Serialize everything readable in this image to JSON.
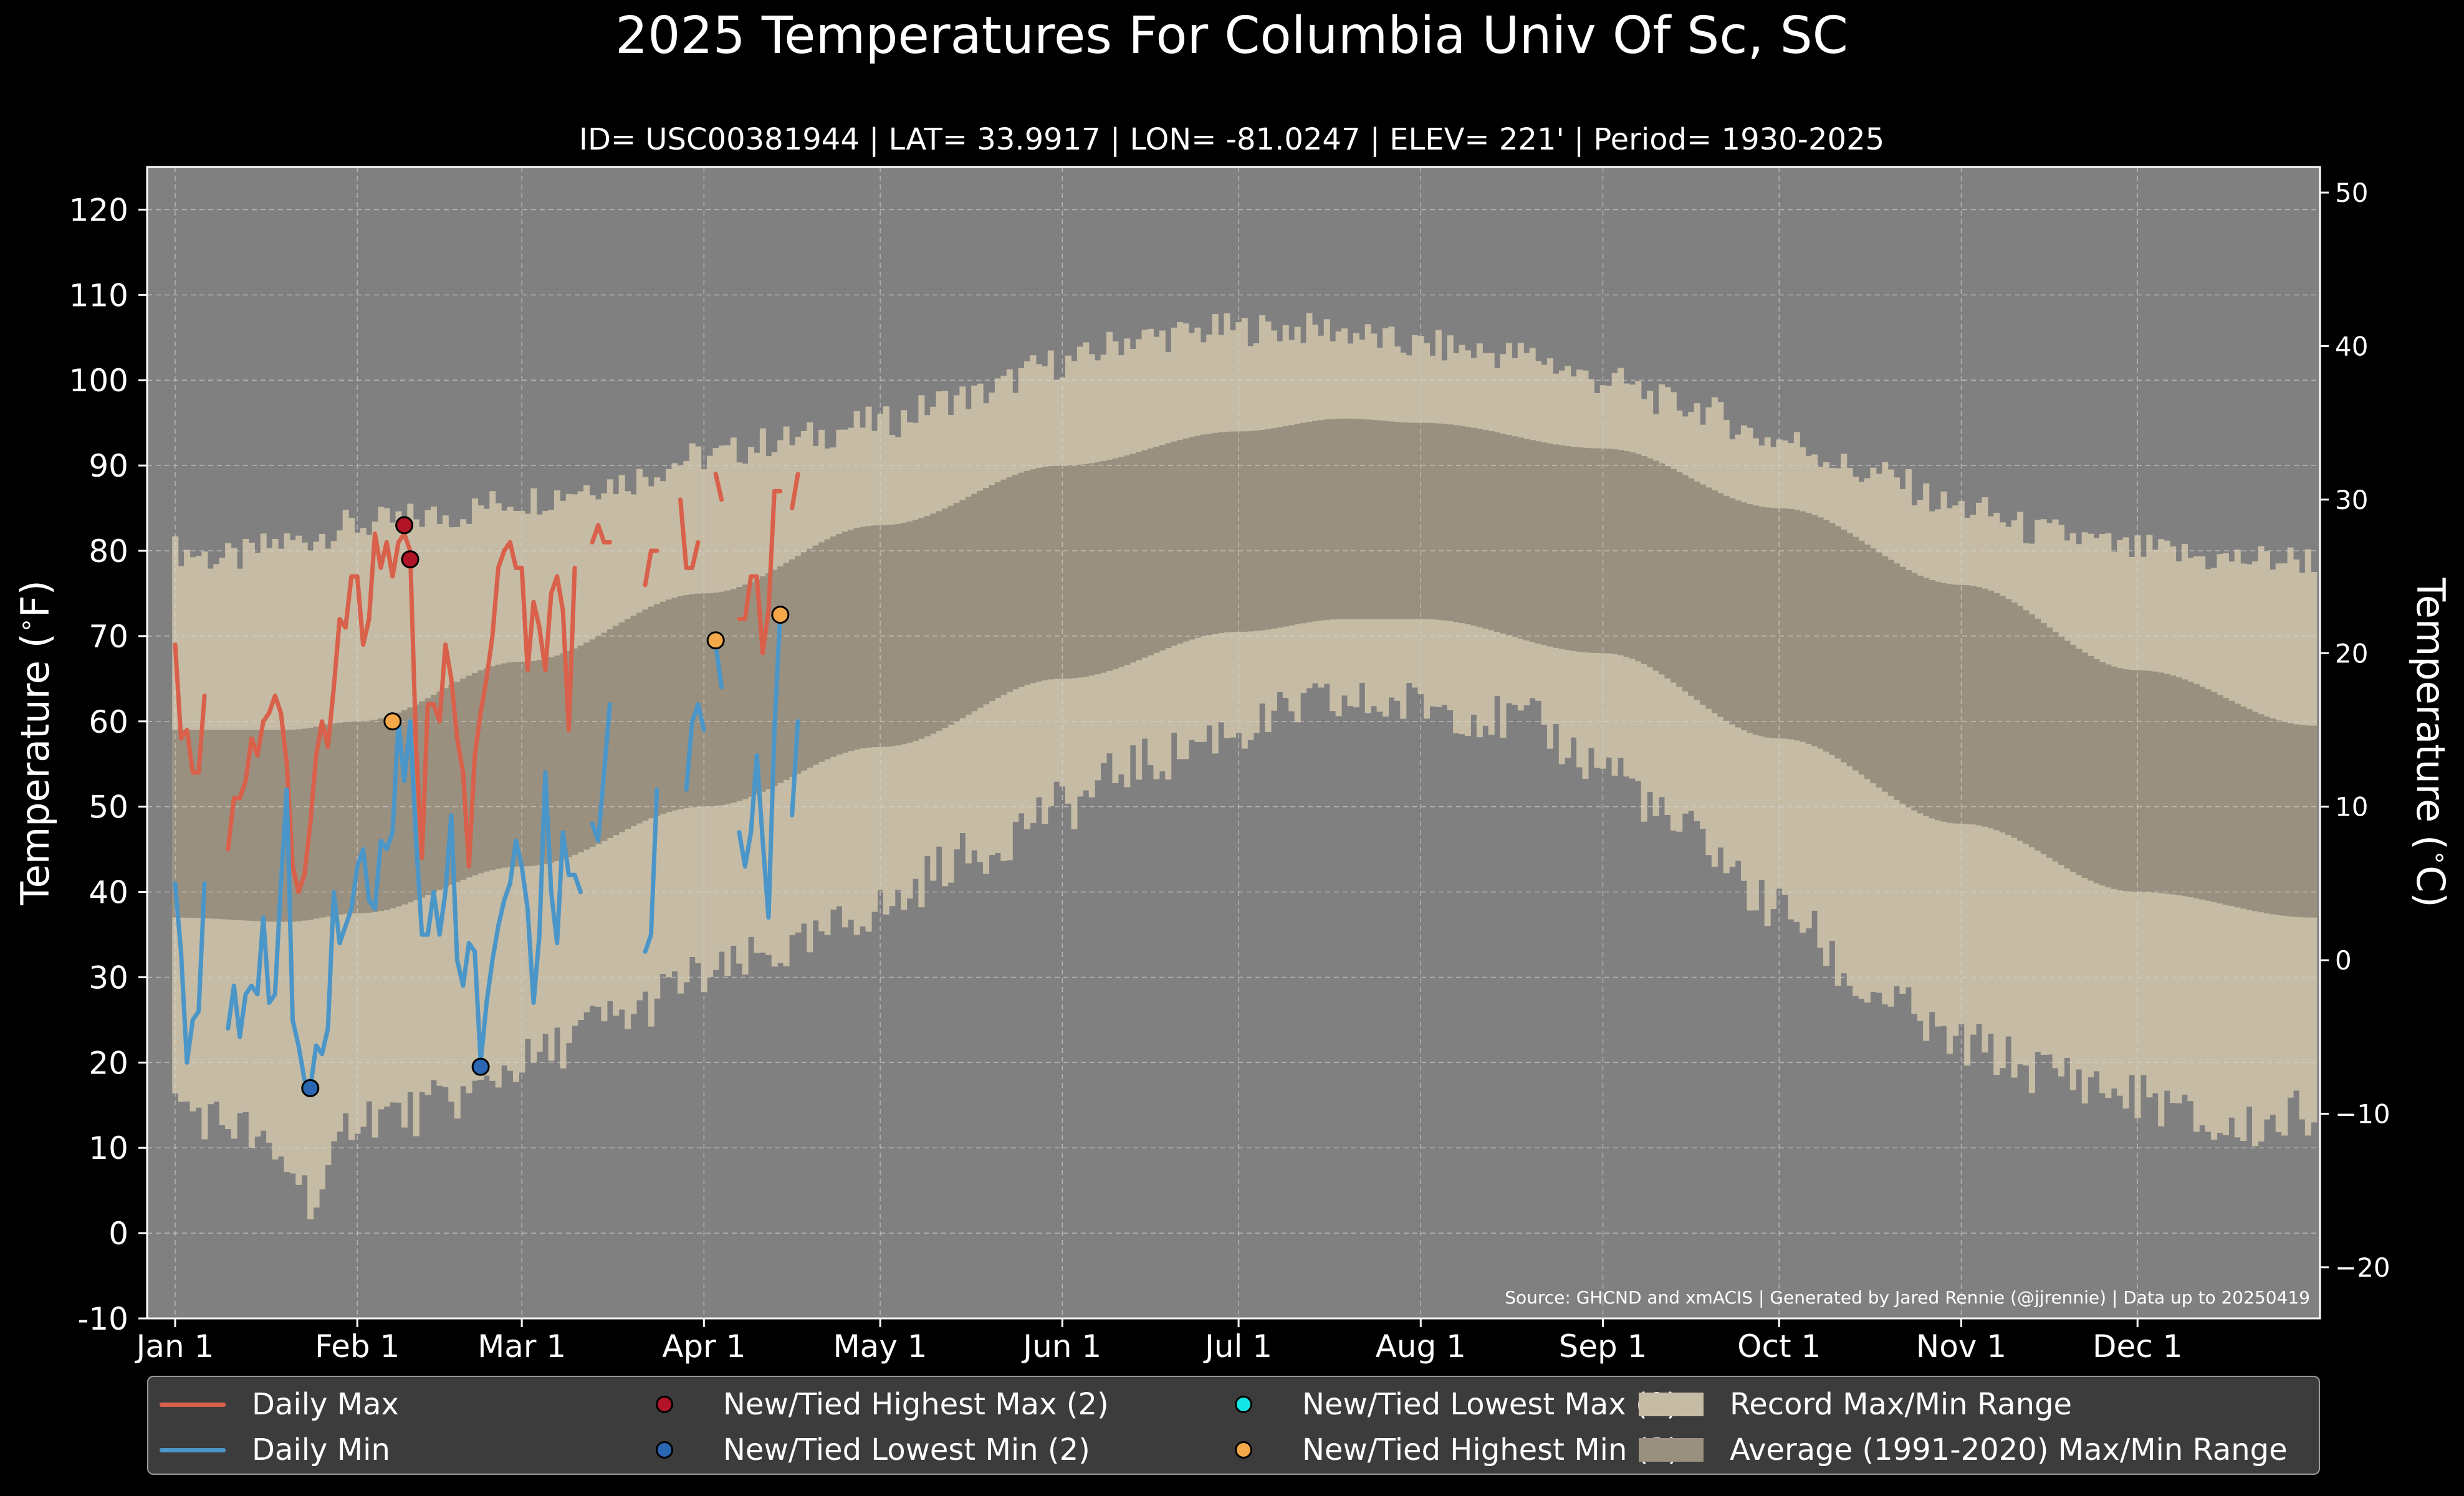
{
  "title": "2025 Temperatures For Columbia Univ Of Sc, SC",
  "subtitle": "ID= USC00381944 | LAT= 33.9917 | LON= -81.0247 | ELEV= 221' | Period= 1930-2025",
  "source_note": "Source: GHCND and xmACIS | Generated by Jared Rennie (@jjrennie) | Data up to 20250419",
  "colors": {
    "background": "#000000",
    "plot_bg": "#808080",
    "record_range": "#c6bba4",
    "average_range": "#9a9080",
    "daily_max": "#d9604a",
    "daily_min": "#4b96c8",
    "new_high_max": "#b01426",
    "new_low_min": "#2a66b2",
    "new_low_max": "#14e6e6",
    "new_high_min": "#f4a84a"
  },
  "legend": [
    {
      "label": "Daily Max",
      "kind": "line",
      "color": "#d9604a"
    },
    {
      "label": "New/Tied Highest Max (2)",
      "kind": "dot",
      "color": "#b01426"
    },
    {
      "label": "New/Tied Lowest Max (0)",
      "kind": "dot",
      "color": "#14e6e6"
    },
    {
      "label": "Record Max/Min Range",
      "kind": "patch",
      "color": "#c6bba4"
    },
    {
      "label": "Daily Min",
      "kind": "line",
      "color": "#4b96c8"
    },
    {
      "label": "New/Tied Lowest Min (2)",
      "kind": "dot",
      "color": "#2a66b2"
    },
    {
      "label": "New/Tied Highest Min (3)",
      "kind": "dot",
      "color": "#f4a84a"
    },
    {
      "label": "Average (1991-2020) Max/Min Range",
      "kind": "patch",
      "color": "#9a9080"
    }
  ],
  "chart_data": {
    "type": "line",
    "ylabel": "Temperature ($^\\circ$F)",
    "ylabel_right": "Temperature ($^\\circ$C)",
    "ylim": [
      -10,
      125
    ],
    "yticks": [
      "-10",
      "0",
      "10",
      "20",
      "30",
      "40",
      "50",
      "60",
      "70",
      "80",
      "90",
      "100",
      "110",
      "120"
    ],
    "ylim_right": [
      -23.33,
      51.67
    ],
    "yticks_right": [
      "−20",
      "−10",
      "0",
      "10",
      "20",
      "30",
      "40",
      "50"
    ],
    "xlim_day": [
      0,
      365
    ],
    "xticks": [
      {
        "label": "Jan 1",
        "day": 1
      },
      {
        "label": "Feb 1",
        "day": 32
      },
      {
        "label": "Mar 1",
        "day": 60
      },
      {
        "label": "Apr 1",
        "day": 91
      },
      {
        "label": "May 1",
        "day": 121
      },
      {
        "label": "Jun 1",
        "day": 152
      },
      {
        "label": "Jul 1",
        "day": 182
      },
      {
        "label": "Aug 1",
        "day": 213
      },
      {
        "label": "Sep 1",
        "day": 244
      },
      {
        "label": "Oct 1",
        "day": 274
      },
      {
        "label": "Nov 1",
        "day": 305
      },
      {
        "label": "Dec 1",
        "day": 335
      }
    ],
    "grid": true,
    "legend_position": "below",
    "record_max_anchors": [
      [
        1,
        80
      ],
      [
        10,
        79
      ],
      [
        20,
        81
      ],
      [
        32,
        83
      ],
      [
        45,
        84
      ],
      [
        60,
        86
      ],
      [
        75,
        88
      ],
      [
        91,
        91
      ],
      [
        105,
        93
      ],
      [
        121,
        95
      ],
      [
        135,
        98
      ],
      [
        152,
        102
      ],
      [
        165,
        105
      ],
      [
        182,
        106
      ],
      [
        196,
        106
      ],
      [
        213,
        104
      ],
      [
        230,
        103
      ],
      [
        244,
        100
      ],
      [
        258,
        97
      ],
      [
        274,
        93
      ],
      [
        290,
        89
      ],
      [
        305,
        85
      ],
      [
        320,
        82
      ],
      [
        335,
        80
      ],
      [
        350,
        79
      ],
      [
        365,
        79
      ]
    ],
    "record_min_anchors": [
      [
        1,
        15
      ],
      [
        10,
        13
      ],
      [
        20,
        8
      ],
      [
        25,
        4
      ],
      [
        32,
        14
      ],
      [
        40,
        14
      ],
      [
        50,
        16
      ],
      [
        60,
        20
      ],
      [
        75,
        25
      ],
      [
        91,
        30
      ],
      [
        105,
        33
      ],
      [
        121,
        38
      ],
      [
        135,
        44
      ],
      [
        152,
        50
      ],
      [
        165,
        55
      ],
      [
        182,
        59
      ],
      [
        196,
        62
      ],
      [
        213,
        62
      ],
      [
        230,
        60
      ],
      [
        244,
        55
      ],
      [
        258,
        47
      ],
      [
        274,
        38
      ],
      [
        290,
        28
      ],
      [
        305,
        22
      ],
      [
        320,
        19
      ],
      [
        335,
        16
      ],
      [
        350,
        12
      ],
      [
        365,
        14
      ]
    ],
    "average_max_anchors": [
      [
        1,
        59
      ],
      [
        20,
        59
      ],
      [
        32,
        60
      ],
      [
        60,
        67
      ],
      [
        91,
        75
      ],
      [
        121,
        83
      ],
      [
        152,
        90
      ],
      [
        182,
        94
      ],
      [
        200,
        95.5
      ],
      [
        213,
        95
      ],
      [
        244,
        92
      ],
      [
        274,
        85
      ],
      [
        305,
        76
      ],
      [
        335,
        66
      ],
      [
        365,
        59.5
      ]
    ],
    "average_min_anchors": [
      [
        1,
        37
      ],
      [
        20,
        36.5
      ],
      [
        32,
        37.5
      ],
      [
        60,
        43
      ],
      [
        91,
        50
      ],
      [
        121,
        57
      ],
      [
        152,
        65
      ],
      [
        182,
        70.5
      ],
      [
        200,
        72
      ],
      [
        213,
        72
      ],
      [
        244,
        68
      ],
      [
        274,
        58
      ],
      [
        305,
        48
      ],
      [
        335,
        40
      ],
      [
        365,
        37
      ]
    ],
    "series": [
      {
        "name": "Daily Max",
        "color": "#d9604a",
        "points": [
          [
            1,
            69
          ],
          [
            2,
            58
          ],
          [
            3,
            59
          ],
          [
            4,
            54
          ],
          [
            5,
            54
          ],
          [
            6,
            63
          ],
          [
            null,
            null
          ],
          [
            10,
            45
          ],
          [
            11,
            51
          ],
          [
            12,
            51
          ],
          [
            13,
            53
          ],
          [
            14,
            58
          ],
          [
            15,
            56
          ],
          [
            16,
            60
          ],
          [
            17,
            61
          ],
          [
            18,
            63
          ],
          [
            19,
            61
          ],
          [
            20,
            55
          ],
          [
            21,
            43
          ],
          [
            22,
            40
          ],
          [
            23,
            42
          ],
          [
            24,
            48
          ],
          [
            25,
            56
          ],
          [
            26,
            60
          ],
          [
            27,
            57
          ],
          [
            28,
            64
          ],
          [
            29,
            72
          ],
          [
            30,
            71
          ],
          [
            31,
            77
          ],
          [
            32,
            77
          ],
          [
            33,
            69
          ],
          [
            34,
            72
          ],
          [
            35,
            82
          ],
          [
            36,
            78
          ],
          [
            37,
            81
          ],
          [
            38,
            77
          ],
          [
            39,
            81
          ],
          [
            40,
            82
          ],
          [
            41,
            80
          ],
          [
            42,
            57
          ],
          [
            43,
            44
          ],
          [
            44,
            62
          ],
          [
            45,
            62
          ],
          [
            46,
            60
          ],
          [
            47,
            69
          ],
          [
            48,
            65
          ],
          [
            49,
            58
          ],
          [
            50,
            54
          ],
          [
            51,
            43
          ],
          [
            52,
            56
          ],
          [
            53,
            61
          ],
          [
            54,
            65
          ],
          [
            55,
            70
          ],
          [
            56,
            78
          ],
          [
            57,
            80
          ],
          [
            58,
            81
          ],
          [
            59,
            78
          ],
          [
            60,
            78
          ],
          [
            61,
            66
          ],
          [
            62,
            74
          ],
          [
            63,
            71
          ],
          [
            64,
            66
          ],
          [
            65,
            75
          ],
          [
            66,
            77
          ],
          [
            67,
            73
          ],
          [
            68,
            59
          ],
          [
            69,
            78
          ],
          [
            null,
            null
          ],
          [
            72,
            81
          ],
          [
            73,
            83
          ],
          [
            74,
            81
          ],
          [
            75,
            81
          ],
          [
            null,
            null
          ],
          [
            81,
            76
          ],
          [
            82,
            80
          ],
          [
            83,
            80
          ],
          [
            null,
            null
          ],
          [
            87,
            86
          ],
          [
            88,
            78
          ],
          [
            89,
            78
          ],
          [
            90,
            81
          ],
          [
            null,
            null
          ],
          [
            93,
            89
          ],
          [
            94,
            86
          ],
          [
            null,
            null
          ],
          [
            97,
            72
          ],
          [
            98,
            72
          ],
          [
            99,
            77
          ],
          [
            100,
            77
          ],
          [
            101,
            68
          ],
          [
            102,
            73
          ],
          [
            103,
            87
          ],
          [
            104,
            87
          ],
          [
            null,
            null
          ],
          [
            106,
            85
          ],
          [
            107,
            89
          ]
        ]
      },
      {
        "name": "Daily Min",
        "color": "#4b96c8",
        "points": [
          [
            1,
            41
          ],
          [
            2,
            33
          ],
          [
            3,
            20
          ],
          [
            4,
            25
          ],
          [
            5,
            26
          ],
          [
            6,
            41
          ],
          [
            null,
            null
          ],
          [
            10,
            24
          ],
          [
            11,
            29
          ],
          [
            12,
            23
          ],
          [
            13,
            28
          ],
          [
            14,
            29
          ],
          [
            15,
            28
          ],
          [
            16,
            37
          ],
          [
            17,
            27
          ],
          [
            18,
            28
          ],
          [
            19,
            41
          ],
          [
            20,
            52
          ],
          [
            21,
            25
          ],
          [
            22,
            22
          ],
          [
            23,
            18
          ],
          [
            24,
            17
          ],
          [
            25,
            22
          ],
          [
            26,
            21
          ],
          [
            27,
            24
          ],
          [
            28,
            40
          ],
          [
            29,
            34
          ],
          [
            30,
            36
          ],
          [
            31,
            38
          ],
          [
            32,
            43
          ],
          [
            33,
            45
          ],
          [
            34,
            39
          ],
          [
            35,
            38
          ],
          [
            36,
            46
          ],
          [
            37,
            45
          ],
          [
            38,
            47
          ],
          [
            39,
            60
          ],
          [
            40,
            53
          ],
          [
            41,
            60
          ],
          [
            42,
            46
          ],
          [
            43,
            35
          ],
          [
            44,
            35
          ],
          [
            45,
            40
          ],
          [
            46,
            35
          ],
          [
            47,
            40
          ],
          [
            48,
            49
          ],
          [
            49,
            32
          ],
          [
            50,
            29
          ],
          [
            51,
            34
          ],
          [
            52,
            33
          ],
          [
            53,
            20
          ],
          [
            54,
            27
          ],
          [
            55,
            32
          ],
          [
            56,
            36
          ],
          [
            57,
            39
          ],
          [
            58,
            41
          ],
          [
            59,
            46
          ],
          [
            60,
            43
          ],
          [
            61,
            38
          ],
          [
            62,
            27
          ],
          [
            63,
            35
          ],
          [
            64,
            54
          ],
          [
            65,
            40
          ],
          [
            66,
            34
          ],
          [
            67,
            47
          ],
          [
            68,
            42
          ],
          [
            69,
            42
          ],
          [
            70,
            40
          ],
          [
            null,
            null
          ],
          [
            72,
            48
          ],
          [
            73,
            46
          ],
          [
            74,
            54
          ],
          [
            75,
            62
          ],
          [
            null,
            null
          ],
          [
            81,
            33
          ],
          [
            82,
            35
          ],
          [
            83,
            52
          ],
          [
            null,
            null
          ],
          [
            88,
            52
          ],
          [
            89,
            60
          ],
          [
            90,
            62
          ],
          [
            91,
            59
          ],
          [
            null,
            null
          ],
          [
            93,
            69
          ],
          [
            94,
            64
          ],
          [
            null,
            null
          ],
          [
            97,
            47
          ],
          [
            98,
            43
          ],
          [
            99,
            47
          ],
          [
            100,
            56
          ],
          [
            101,
            46
          ],
          [
            102,
            37
          ],
          [
            103,
            59
          ],
          [
            104,
            73
          ],
          [
            null,
            null
          ],
          [
            106,
            49
          ],
          [
            107,
            60
          ]
        ]
      }
    ],
    "markers": [
      {
        "type": "New/Tied Highest Max",
        "color": "#b01426",
        "points": [
          [
            40,
            83
          ],
          [
            41,
            79
          ]
        ]
      },
      {
        "type": "New/Tied Lowest Min",
        "color": "#2a66b2",
        "points": [
          [
            24,
            17
          ],
          [
            53,
            19.5
          ]
        ]
      },
      {
        "type": "New/Tied Highest Min",
        "color": "#f4a84a",
        "points": [
          [
            38,
            60
          ],
          [
            93,
            69.5
          ],
          [
            104,
            72.5
          ]
        ]
      }
    ]
  }
}
